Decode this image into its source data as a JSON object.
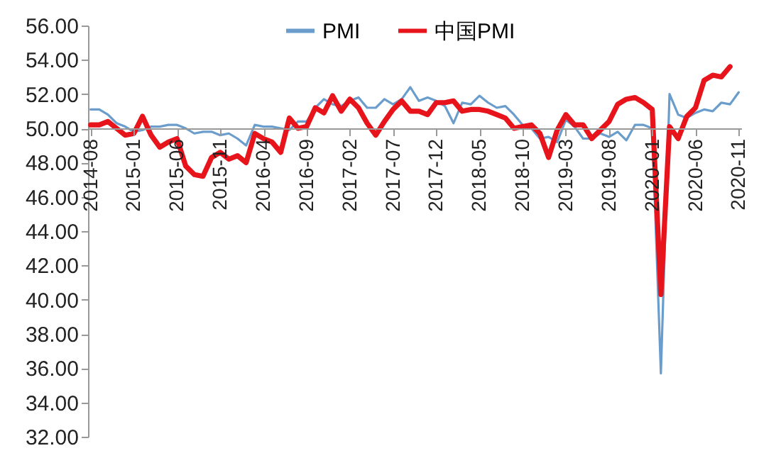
{
  "chart_data": {
    "type": "line",
    "categories": [
      "2014-08",
      null,
      null,
      null,
      null,
      "2015-01",
      null,
      null,
      null,
      null,
      "2015-06",
      null,
      null,
      null,
      null,
      "2015-11",
      null,
      null,
      null,
      null,
      "2016-04",
      null,
      null,
      null,
      null,
      "2016-09",
      null,
      null,
      null,
      null,
      "2017-02",
      null,
      null,
      null,
      null,
      "2017-07",
      null,
      null,
      null,
      null,
      "2017-12",
      null,
      null,
      null,
      null,
      "2018-05",
      null,
      null,
      null,
      null,
      "2018-10",
      null,
      null,
      null,
      null,
      "2019-03",
      null,
      null,
      null,
      null,
      "2019-08",
      null,
      null,
      null,
      null,
      "2020-01",
      null,
      null,
      null,
      null,
      "2020-06",
      null,
      null,
      null,
      null,
      "2020-11"
    ],
    "series": [
      {
        "name": "PMI",
        "color": "#6a9dcc",
        "values": [
          51.1,
          51.1,
          50.8,
          50.3,
          50.1,
          49.8,
          49.9,
          50.1,
          50.1,
          50.2,
          50.2,
          50.0,
          49.7,
          49.8,
          49.8,
          49.6,
          49.7,
          49.4,
          49.0,
          50.2,
          50.1,
          50.1,
          50.0,
          49.9,
          50.4,
          50.4,
          51.2,
          51.7,
          51.4,
          51.3,
          51.6,
          51.8,
          51.2,
          51.2,
          51.7,
          51.4,
          51.7,
          52.4,
          51.6,
          51.8,
          51.6,
          51.3,
          50.3,
          51.5,
          51.4,
          51.9,
          51.5,
          51.2,
          51.3,
          50.8,
          50.2,
          50.0,
          49.4,
          49.5,
          49.2,
          50.5,
          50.1,
          49.4,
          49.4,
          49.7,
          49.5,
          49.8,
          49.3,
          50.2,
          50.2,
          50.0,
          35.7,
          52.0,
          50.8,
          50.6,
          50.9,
          51.1,
          51.0,
          51.5,
          51.4,
          52.1
        ]
      },
      {
        "name": "中国PMI",
        "color": "#e8141c",
        "values": [
          50.2,
          50.2,
          50.4,
          50.0,
          49.6,
          49.7,
          50.7,
          49.6,
          48.9,
          49.2,
          49.4,
          47.8,
          47.3,
          47.2,
          48.3,
          48.6,
          48.2,
          48.4,
          48.0,
          49.7,
          49.4,
          49.2,
          48.6,
          50.6,
          50.0,
          50.1,
          51.2,
          50.9,
          51.9,
          51.0,
          51.7,
          51.2,
          50.3,
          49.6,
          50.4,
          51.1,
          51.6,
          51.0,
          51.0,
          50.8,
          51.5,
          51.5,
          51.6,
          51.0,
          51.1,
          51.1,
          51.0,
          50.8,
          50.6,
          50.0,
          50.1,
          50.2,
          49.7,
          48.3,
          49.9,
          50.8,
          50.2,
          50.2,
          49.4,
          49.9,
          50.4,
          51.4,
          51.7,
          51.8,
          51.5,
          51.1,
          40.3,
          50.1,
          49.4,
          50.7,
          51.2,
          52.8,
          53.1,
          53.0,
          53.6,
          null
        ]
      }
    ],
    "ylim": [
      32,
      56
    ],
    "yticks": [
      {
        "value": 32,
        "label": "32.00"
      },
      {
        "value": 34,
        "label": "34.00"
      },
      {
        "value": 36,
        "label": "36.00"
      },
      {
        "value": 38,
        "label": "38.00"
      },
      {
        "value": 40,
        "label": "40.00"
      },
      {
        "value": 42,
        "label": "42.00"
      },
      {
        "value": 44,
        "label": "44.00"
      },
      {
        "value": 46,
        "label": "46.00"
      },
      {
        "value": 48,
        "label": "48.00"
      },
      {
        "value": 50,
        "label": "50.00"
      },
      {
        "value": 52,
        "label": "52.00"
      },
      {
        "value": 54,
        "label": "54.00"
      },
      {
        "value": 56,
        "label": "56.00"
      }
    ],
    "legend": "top",
    "grid": false
  }
}
